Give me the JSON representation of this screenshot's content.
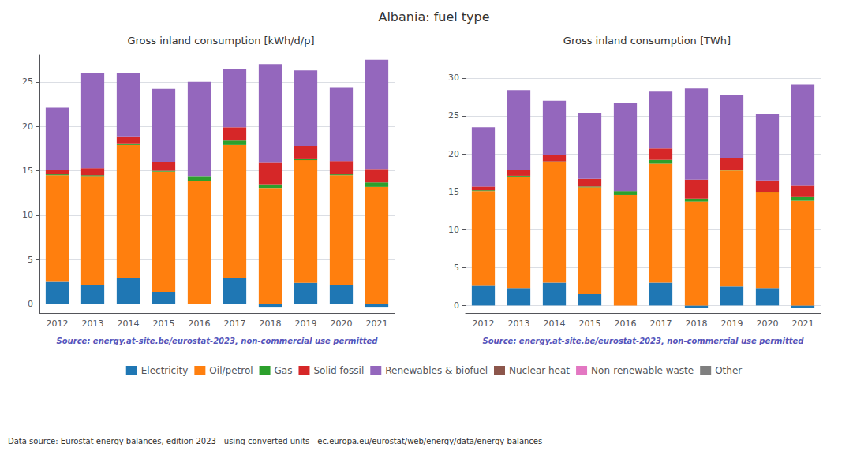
{
  "title": "Albania: fuel type",
  "annotations": [
    "Data source: Eurostat energy balances, edition 2023 - using converted units - ec.europa.eu/eurostat/web/energy/data/energy-balances"
  ],
  "legend": "bottom",
  "chart_data": [
    {
      "type": "bar",
      "title": "Gross inland consumption [kWh/d/p]",
      "annotations": [
        "Source: energy.at-site.be/eurostat-2023, non-commercial use permitted"
      ],
      "categories": [
        "2012",
        "2013",
        "2014",
        "2015",
        "2016",
        "2017",
        "2018",
        "2019",
        "2020",
        "2021"
      ],
      "series": [
        {
          "name": "Electricity",
          "color": "#1f77b4",
          "values": [
            2.5,
            2.2,
            2.9,
            1.4,
            0.0,
            2.9,
            -0.3,
            2.4,
            2.2,
            -0.3
          ]
        },
        {
          "name": "Oil/petrol",
          "color": "#ff7f0e",
          "values": [
            12.0,
            12.2,
            15.0,
            13.5,
            13.9,
            15.0,
            13.0,
            13.8,
            12.3,
            13.2
          ]
        },
        {
          "name": "Gas",
          "color": "#2ca02c",
          "values": [
            0.1,
            0.1,
            0.1,
            0.1,
            0.5,
            0.5,
            0.4,
            0.1,
            0.1,
            0.5
          ]
        },
        {
          "name": "Solid fossil",
          "color": "#d62728",
          "values": [
            0.5,
            0.8,
            0.8,
            1.0,
            0.0,
            1.5,
            2.5,
            1.5,
            1.5,
            1.5
          ]
        },
        {
          "name": "Renewables & biofuel",
          "color": "#9467bd",
          "values": [
            7.0,
            10.7,
            7.2,
            8.2,
            10.6,
            6.5,
            11.1,
            8.5,
            8.3,
            12.3
          ]
        },
        {
          "name": "Nuclear heat",
          "color": "#8c564b",
          "values": [
            0.0,
            0.0,
            0.0,
            0.0,
            0.0,
            0.0,
            0.0,
            0.0,
            0.0,
            0.0
          ]
        },
        {
          "name": "Non-renewable waste",
          "color": "#e377c2",
          "values": [
            0.0,
            0.0,
            0.0,
            0.0,
            0.0,
            0.0,
            0.0,
            0.0,
            0.0,
            0.0
          ]
        },
        {
          "name": "Other",
          "color": "#7f7f7f",
          "values": [
            0.0,
            0.0,
            0.0,
            0.0,
            0.0,
            0.0,
            0.0,
            0.0,
            0.0,
            0.0
          ]
        }
      ],
      "ylim": [
        -1,
        28
      ],
      "yticks": [
        0,
        5,
        10,
        15,
        20,
        25
      ],
      "grid": true,
      "stacked": true
    },
    {
      "type": "bar",
      "title": "Gross inland consumption [TWh]",
      "annotations": [
        "Source: energy.at-site.be/eurostat-2023, non-commercial use permitted"
      ],
      "categories": [
        "2012",
        "2013",
        "2014",
        "2015",
        "2016",
        "2017",
        "2018",
        "2019",
        "2020",
        "2021"
      ],
      "series": [
        {
          "name": "Electricity",
          "color": "#1f77b4",
          "values": [
            2.6,
            2.3,
            3.0,
            1.5,
            0.0,
            3.0,
            -0.3,
            2.5,
            2.3,
            -0.3
          ]
        },
        {
          "name": "Oil/petrol",
          "color": "#ff7f0e",
          "values": [
            12.5,
            14.7,
            15.9,
            14.1,
            14.6,
            15.7,
            13.7,
            15.3,
            12.6,
            13.8
          ]
        },
        {
          "name": "Gas",
          "color": "#2ca02c",
          "values": [
            0.1,
            0.1,
            0.1,
            0.1,
            0.5,
            0.5,
            0.4,
            0.1,
            0.1,
            0.5
          ]
        },
        {
          "name": "Solid fossil",
          "color": "#d62728",
          "values": [
            0.5,
            0.8,
            0.8,
            1.0,
            0.0,
            1.5,
            2.5,
            1.5,
            1.5,
            1.5
          ]
        },
        {
          "name": "Renewables & biofuel",
          "color": "#9467bd",
          "values": [
            7.8,
            10.5,
            7.2,
            8.7,
            11.6,
            7.5,
            12.0,
            8.4,
            8.8,
            13.3
          ]
        },
        {
          "name": "Nuclear heat",
          "color": "#8c564b",
          "values": [
            0.0,
            0.0,
            0.0,
            0.0,
            0.0,
            0.0,
            0.0,
            0.0,
            0.0,
            0.0
          ]
        },
        {
          "name": "Non-renewable waste",
          "color": "#e377c2",
          "values": [
            0.0,
            0.0,
            0.0,
            0.0,
            0.0,
            0.0,
            0.0,
            0.0,
            0.0,
            0.0
          ]
        },
        {
          "name": "Other",
          "color": "#7f7f7f",
          "values": [
            0.0,
            0.0,
            0.0,
            0.0,
            0.0,
            0.0,
            0.0,
            0.0,
            0.0,
            0.0
          ]
        }
      ],
      "ylim": [
        -1,
        33
      ],
      "yticks": [
        0,
        5,
        10,
        15,
        20,
        25,
        30
      ],
      "grid": true,
      "stacked": true
    }
  ]
}
